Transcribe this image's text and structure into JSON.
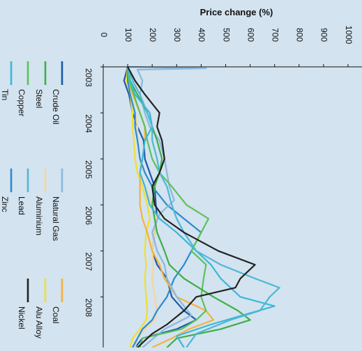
{
  "chart_data": {
    "type": "line",
    "title": "Price change (%)",
    "x": [
      "2003",
      "2004",
      "2005",
      "2006",
      "2007",
      "2008"
    ],
    "yticks": [
      0,
      100,
      200,
      300,
      400,
      500,
      600,
      700,
      800,
      900,
      1000
    ],
    "ylim": [
      0,
      1000
    ],
    "xlim": [
      2003,
      2009.1
    ],
    "orientation": "rotated-90-clockwise",
    "legend_position": "bottom",
    "series": [
      {
        "name": "Crude Oil",
        "color": "#1a5aa8",
        "points": [
          [
            2003,
            100
          ],
          [
            2003.3,
            85
          ],
          [
            2003.6,
            105
          ],
          [
            2004,
            120
          ],
          [
            2004.3,
            140
          ],
          [
            2004.6,
            165
          ],
          [
            2005,
            170
          ],
          [
            2005.3,
            190
          ],
          [
            2005.6,
            210
          ],
          [
            2006,
            215
          ],
          [
            2006.3,
            220
          ],
          [
            2006.6,
            210
          ],
          [
            2007,
            200
          ],
          [
            2007.3,
            220
          ],
          [
            2007.6,
            260
          ],
          [
            2008,
            280
          ],
          [
            2008.3,
            330
          ],
          [
            2008.5,
            380
          ],
          [
            2008.7,
            300
          ],
          [
            2008.9,
            160
          ],
          [
            2009.1,
            130
          ]
        ]
      },
      {
        "name": "Steel",
        "color": "#3fae49",
        "points": [
          [
            2003,
            100
          ],
          [
            2003.3,
            110
          ],
          [
            2003.6,
            140
          ],
          [
            2004,
            180
          ],
          [
            2004.3,
            200
          ],
          [
            2004.6,
            220
          ],
          [
            2005,
            240
          ],
          [
            2005.3,
            230
          ],
          [
            2005.6,
            210
          ],
          [
            2006,
            200
          ],
          [
            2006.3,
            210
          ],
          [
            2006.6,
            220
          ],
          [
            2007,
            250
          ],
          [
            2007.3,
            270
          ],
          [
            2007.6,
            330
          ],
          [
            2008,
            450
          ],
          [
            2008.3,
            550
          ],
          [
            2008.5,
            600
          ],
          [
            2008.7,
            480
          ],
          [
            2008.9,
            300
          ],
          [
            2009.1,
            260
          ]
        ]
      },
      {
        "name": "Copper",
        "color": "#5cc25a",
        "points": [
          [
            2003,
            100
          ],
          [
            2003.3,
            105
          ],
          [
            2003.6,
            125
          ],
          [
            2004,
            150
          ],
          [
            2004.3,
            170
          ],
          [
            2004.6,
            180
          ],
          [
            2005,
            200
          ],
          [
            2005.3,
            230
          ],
          [
            2005.6,
            280
          ],
          [
            2006,
            340
          ],
          [
            2006.3,
            430
          ],
          [
            2006.6,
            400
          ],
          [
            2007,
            360
          ],
          [
            2007.3,
            420
          ],
          [
            2007.6,
            410
          ],
          [
            2008,
            400
          ],
          [
            2008.3,
            420
          ],
          [
            2008.5,
            380
          ],
          [
            2008.7,
            320
          ],
          [
            2008.9,
            160
          ],
          [
            2009.1,
            150
          ]
        ]
      },
      {
        "name": "Tin",
        "color": "#3ab8d8",
        "points": [
          [
            2003,
            100
          ],
          [
            2003.3,
            110
          ],
          [
            2003.6,
            130
          ],
          [
            2004,
            190
          ],
          [
            2004.3,
            200
          ],
          [
            2004.6,
            170
          ],
          [
            2005,
            160
          ],
          [
            2005.3,
            150
          ],
          [
            2005.6,
            170
          ],
          [
            2006,
            190
          ],
          [
            2006.3,
            230
          ],
          [
            2006.6,
            300
          ],
          [
            2007,
            380
          ],
          [
            2007.3,
            440
          ],
          [
            2007.6,
            480
          ],
          [
            2008,
            560
          ],
          [
            2008.2,
            700
          ],
          [
            2008.35,
            600
          ],
          [
            2008.6,
            440
          ],
          [
            2008.85,
            300
          ],
          [
            2009.1,
            330
          ]
        ]
      },
      {
        "name": "Natural Gas",
        "color": "#8ab8dd",
        "points": [
          [
            2003,
            100
          ],
          [
            2003.03,
            420
          ],
          [
            2003.06,
            140
          ],
          [
            2003.3,
            160
          ],
          [
            2003.6,
            150
          ],
          [
            2004,
            170
          ],
          [
            2004.3,
            190
          ],
          [
            2004.6,
            230
          ],
          [
            2005,
            250
          ],
          [
            2005.3,
            260
          ],
          [
            2005.6,
            270
          ],
          [
            2005.9,
            290
          ],
          [
            2006.2,
            230
          ],
          [
            2006.6,
            200
          ],
          [
            2007,
            220
          ],
          [
            2007.3,
            250
          ],
          [
            2007.6,
            260
          ],
          [
            2008,
            300
          ],
          [
            2008.4,
            360
          ],
          [
            2008.7,
            250
          ],
          [
            2009.1,
            160
          ]
        ]
      },
      {
        "name": "Aluminium",
        "color": "#f7d59a",
        "points": [
          [
            2003,
            100
          ],
          [
            2003.3,
            100
          ],
          [
            2003.6,
            110
          ],
          [
            2004,
            130
          ],
          [
            2004.3,
            140
          ],
          [
            2004.6,
            140
          ],
          [
            2005,
            150
          ],
          [
            2005.3,
            150
          ],
          [
            2005.6,
            170
          ],
          [
            2006,
            200
          ],
          [
            2006.3,
            220
          ],
          [
            2006.6,
            210
          ],
          [
            2007,
            200
          ],
          [
            2007.3,
            205
          ],
          [
            2007.6,
            200
          ],
          [
            2008,
            210
          ],
          [
            2008.3,
            220
          ],
          [
            2008.5,
            210
          ],
          [
            2008.7,
            170
          ],
          [
            2008.9,
            140
          ],
          [
            2009.1,
            130
          ]
        ]
      },
      {
        "name": "Lead",
        "color": "#4fb7d6",
        "points": [
          [
            2003,
            100
          ],
          [
            2003.3,
            120
          ],
          [
            2003.6,
            150
          ],
          [
            2004,
            180
          ],
          [
            2004.3,
            200
          ],
          [
            2004.6,
            200
          ],
          [
            2005,
            220
          ],
          [
            2005.3,
            230
          ],
          [
            2005.6,
            260
          ],
          [
            2006,
            280
          ],
          [
            2006.3,
            300
          ],
          [
            2006.6,
            330
          ],
          [
            2007,
            380
          ],
          [
            2007.3,
            480
          ],
          [
            2007.6,
            620
          ],
          [
            2007.8,
            720
          ],
          [
            2008,
            680
          ],
          [
            2008.3,
            640
          ],
          [
            2008.5,
            520
          ],
          [
            2008.8,
            380
          ],
          [
            2009.1,
            340
          ]
        ]
      },
      {
        "name": "Zinc",
        "color": "#2b8ad0",
        "points": [
          [
            2003,
            100
          ],
          [
            2003.3,
            100
          ],
          [
            2003.6,
            110
          ],
          [
            2004,
            130
          ],
          [
            2004.3,
            130
          ],
          [
            2004.6,
            140
          ],
          [
            2005,
            150
          ],
          [
            2005.3,
            170
          ],
          [
            2005.6,
            200
          ],
          [
            2006,
            260
          ],
          [
            2006.3,
            330
          ],
          [
            2006.6,
            400
          ],
          [
            2007,
            360
          ],
          [
            2007.3,
            330
          ],
          [
            2007.6,
            290
          ],
          [
            2008,
            260
          ],
          [
            2008.3,
            220
          ],
          [
            2008.5,
            200
          ],
          [
            2008.7,
            160
          ],
          [
            2009.1,
            120
          ]
        ]
      },
      {
        "name": "Coal",
        "color": "#f5b23c",
        "points": [
          [
            2003,
            100
          ],
          [
            2003.3,
            105
          ],
          [
            2003.6,
            120
          ],
          [
            2004,
            150
          ],
          [
            2004.3,
            170
          ],
          [
            2004.6,
            170
          ],
          [
            2005,
            160
          ],
          [
            2005.3,
            150
          ],
          [
            2005.6,
            150
          ],
          [
            2006,
            150
          ],
          [
            2006.3,
            160
          ],
          [
            2006.6,
            180
          ],
          [
            2007,
            200
          ],
          [
            2007.3,
            230
          ],
          [
            2007.6,
            250
          ],
          [
            2008,
            300
          ],
          [
            2008.3,
            420
          ],
          [
            2008.5,
            450
          ],
          [
            2008.7,
            350
          ],
          [
            2008.9,
            280
          ],
          [
            2009.1,
            200
          ]
        ]
      },
      {
        "name": "Alu Alloy",
        "color": "#f0e030",
        "points": [
          [
            2003,
            100
          ],
          [
            2003.3,
            95
          ],
          [
            2003.6,
            110
          ],
          [
            2004,
            120
          ],
          [
            2004.3,
            120
          ],
          [
            2004.6,
            125
          ],
          [
            2005,
            130
          ],
          [
            2005.3,
            140
          ],
          [
            2005.6,
            160
          ],
          [
            2006,
            180
          ],
          [
            2006.3,
            190
          ],
          [
            2006.6,
            175
          ],
          [
            2007,
            170
          ],
          [
            2007.3,
            175
          ],
          [
            2007.6,
            170
          ],
          [
            2008,
            175
          ],
          [
            2008.3,
            180
          ],
          [
            2008.5,
            175
          ],
          [
            2008.7,
            150
          ],
          [
            2008.9,
            120
          ],
          [
            2009.1,
            110
          ]
        ]
      },
      {
        "name": "Nickel",
        "color": "#222222",
        "points": [
          [
            2003,
            100
          ],
          [
            2003.3,
            130
          ],
          [
            2003.6,
            170
          ],
          [
            2004,
            230
          ],
          [
            2004.3,
            220
          ],
          [
            2004.6,
            240
          ],
          [
            2005,
            250
          ],
          [
            2005.3,
            230
          ],
          [
            2005.6,
            200
          ],
          [
            2006,
            210
          ],
          [
            2006.3,
            250
          ],
          [
            2006.6,
            330
          ],
          [
            2007,
            470
          ],
          [
            2007.3,
            620
          ],
          [
            2007.6,
            560
          ],
          [
            2007.8,
            540
          ],
          [
            2008,
            380
          ],
          [
            2008.3,
            330
          ],
          [
            2008.6,
            260
          ],
          [
            2008.8,
            200
          ],
          [
            2009.1,
            140
          ]
        ]
      }
    ]
  }
}
